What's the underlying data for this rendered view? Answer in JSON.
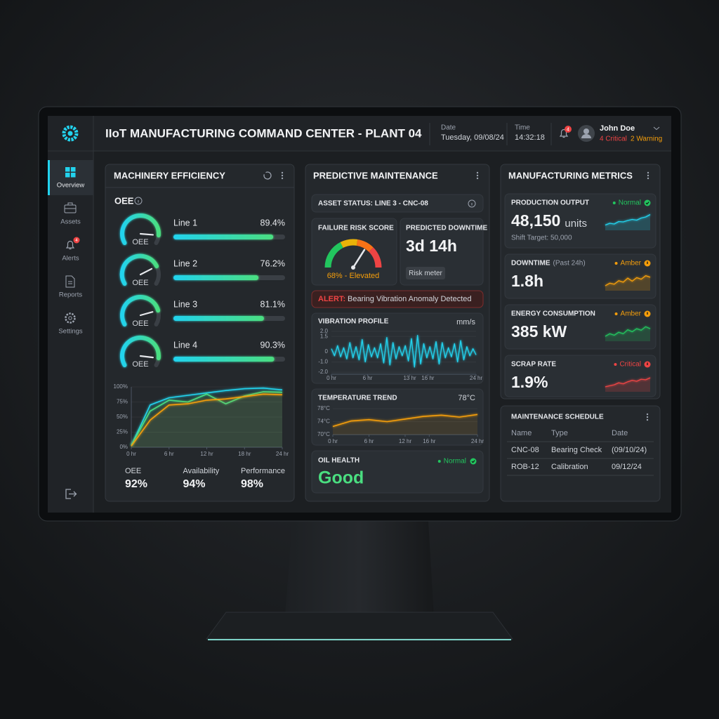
{
  "header": {
    "title": "IIoT MANUFACTURING COMMAND CENTER - PLANT 04",
    "date_label": "Date",
    "date": "Tuesday, 09/08/24",
    "time_label": "Time",
    "time": "14:32:18",
    "notification_count": "4",
    "user": "John Doe",
    "critical": "4 Critical",
    "warning": "2 Warning"
  },
  "sidebar": {
    "items": [
      "Overview",
      "Assets",
      "Alerts",
      "Reports",
      "Settings"
    ],
    "alerts_badge": "4"
  },
  "machinery": {
    "title": "MACHINERY EFFICIENCY",
    "oee_label": "OEE",
    "lines": [
      {
        "name": "Line 1",
        "gauge_label": "OEE",
        "value": 89.4,
        "value_label": "89.4%"
      },
      {
        "name": "Line 2",
        "gauge_label": "OEE",
        "value": 76.2,
        "value_label": "76.2%"
      },
      {
        "name": "Line 3",
        "gauge_label": "OEE",
        "value": 81.1,
        "value_label": "81.1%"
      },
      {
        "name": "Line 4",
        "gauge_label": "OEE",
        "value": 90.3,
        "value_label": "90.3%"
      }
    ],
    "chart": {
      "type": "line",
      "x": [
        0,
        3,
        6,
        9,
        12,
        15,
        18,
        21,
        24
      ],
      "xlim": [
        0,
        24
      ],
      "xticks": [
        {
          "value": 0,
          "label": "0 hr"
        },
        {
          "value": 6,
          "label": "6 hr"
        },
        {
          "value": 12,
          "label": "12 hr"
        },
        {
          "value": 18,
          "label": "18 hr"
        },
        {
          "value": 24,
          "label": "24 hr"
        }
      ],
      "ylim": [
        0,
        100
      ],
      "yticks": [
        {
          "value": 100,
          "label": "100%"
        },
        {
          "value": 75,
          "label": "75%"
        },
        {
          "value": 50,
          "label": "50%"
        },
        {
          "value": 25,
          "label": "25%"
        },
        {
          "value": 0,
          "label": "0%"
        }
      ],
      "series": [
        {
          "name": "OEE",
          "color": "#22d3ee",
          "values": [
            3,
            70,
            82,
            86,
            90,
            94,
            97,
            98,
            95
          ],
          "current": 92,
          "current_label": "92%"
        },
        {
          "name": "Availability",
          "color": "#4ade80",
          "values": [
            3,
            60,
            78,
            75,
            88,
            72,
            85,
            92,
            91
          ],
          "current": 94,
          "current_label": "94%"
        },
        {
          "name": "Performance",
          "color": "#f59e0b",
          "values": [
            2,
            45,
            70,
            72,
            78,
            80,
            84,
            88,
            87
          ],
          "current": 98,
          "current_label": "98%"
        }
      ]
    }
  },
  "predictive": {
    "title": "PREDICTIVE MAINTENANCE",
    "asset_status": "ASSET STATUS: LINE 3 - CNC-08",
    "risk": {
      "title": "FAILURE RISK SCORE",
      "value": 68,
      "value_label": "68% - Elevated"
    },
    "downtime": {
      "title": "PREDICTED DOWNTIME",
      "value": "3d 14h",
      "button": "Risk meter"
    },
    "alert": {
      "prefix": "ALERT:",
      "message": "Bearing Vibration Anomaly Detected"
    },
    "vibration": {
      "type": "line",
      "title": "VIBRATION PROFILE",
      "unit": "mm/s",
      "color": "#22d3ee",
      "xlim": [
        0,
        24
      ],
      "xticks": [
        {
          "value": 0,
          "label": "0 hr"
        },
        {
          "value": 6,
          "label": "6 hr"
        },
        {
          "value": 13,
          "label": "13 hr"
        },
        {
          "value": 16,
          "label": "16 hr"
        },
        {
          "value": 24,
          "label": "24 hr"
        }
      ],
      "ylim": [
        -2.2,
        2.2
      ],
      "yticks": [
        {
          "value": 2,
          "label": "2.0"
        },
        1.5,
        0,
        {
          "value": -1,
          "label": "-1.0"
        },
        {
          "value": -2,
          "label": "-2.0"
        }
      ],
      "values": [
        0.3,
        -0.4,
        0.6,
        -0.5,
        0.4,
        -0.7,
        0.9,
        -0.6,
        0.5,
        -0.8,
        1.2,
        -1.0,
        0.7,
        -0.5,
        0.4,
        -0.6,
        0.8,
        -1.1,
        1.4,
        -1.3,
        0.9,
        -0.7,
        0.5,
        -0.4,
        0.6,
        -0.9,
        1.3,
        -1.5,
        1.6,
        -1.2,
        0.8,
        -0.6,
        0.5,
        -0.7,
        1.0,
        -1.2,
        0.9,
        -0.6,
        0.4,
        -0.5,
        0.8,
        -1.0,
        1.1,
        -0.8,
        0.5,
        -0.4,
        0.3,
        -0.3
      ]
    },
    "temperature": {
      "type": "line",
      "title": "TEMPERATURE TREND",
      "current": "78°C",
      "color": "#f59e0b",
      "x": [
        0,
        3,
        6,
        9,
        12,
        15,
        18,
        21,
        24
      ],
      "xlim": [
        0,
        24
      ],
      "xticks": [
        {
          "value": 0,
          "label": "0 hr"
        },
        {
          "value": 6,
          "label": "6 hr"
        },
        {
          "value": 12,
          "label": "12 hr"
        },
        {
          "value": 16,
          "label": "16 hr"
        },
        {
          "value": 24,
          "label": "24 hr"
        }
      ],
      "ylim": [
        70,
        78
      ],
      "yticks": [
        {
          "value": 78,
          "label": "78°C"
        },
        {
          "value": 74,
          "label": "74°C"
        },
        {
          "value": 70,
          "label": "70°C"
        }
      ],
      "values": [
        72.5,
        74.2,
        74.6,
        74.0,
        74.8,
        75.6,
        76.0,
        75.4,
        76.2
      ]
    },
    "oil": {
      "title": "OIL HEALTH",
      "status": "Normal",
      "value": "Good"
    }
  },
  "metrics": {
    "title": "MANUFACTURING METRICS",
    "cards": [
      {
        "title": "PRODUCTION OUTPUT",
        "value": "48,150",
        "unit": "units",
        "status": "Normal",
        "status_color": "#22c55e",
        "note": "Shift Target: 50,000",
        "trend": [
          3,
          4,
          3.6,
          5,
          4.8,
          5.6,
          6.2,
          5.8,
          7,
          7.6,
          9
        ],
        "trend_ylim": [
          0,
          10
        ],
        "trend_color": "#22d3ee"
      },
      {
        "title": "DOWNTIME",
        "qualifier": "(Past 24h)",
        "value": "1.8h",
        "status": "Amber",
        "status_color": "#f59e0b",
        "trend": [
          2,
          3,
          2.6,
          4,
          3.4,
          5,
          3.8,
          5.2,
          4.6,
          6,
          5.4
        ],
        "trend_ylim": [
          0,
          7
        ],
        "trend_color": "#f59e0b"
      },
      {
        "title": "ENERGY CONSUMPTION",
        "value": "385 kW",
        "status": "Amber",
        "status_color": "#f59e0b",
        "trend": [
          2,
          3,
          2.4,
          3.6,
          3,
          4.6,
          3.8,
          5,
          4.4,
          5.8,
          5
        ],
        "trend_ylim": [
          0,
          7
        ],
        "trend_color": "#22c55e"
      },
      {
        "title": "SCRAP RATE",
        "value": "1.9%",
        "status": "Critical",
        "status_color": "#ef4444",
        "trend": [
          2,
          2.4,
          2.8,
          3.6,
          3.2,
          4,
          4.6,
          4.2,
          5,
          4.8,
          5.6
        ],
        "trend_ylim": [
          0,
          7
        ],
        "trend_color": "#ef4444"
      }
    ]
  },
  "schedule": {
    "title": "MAINTENANCE SCHEDULE",
    "columns": [
      "Name",
      "Type",
      "Date"
    ],
    "rows": [
      [
        "CNC-08",
        "Bearing Check",
        "(09/10/24)"
      ],
      [
        "ROB-12",
        "Calibration",
        "09/12/24"
      ]
    ]
  }
}
